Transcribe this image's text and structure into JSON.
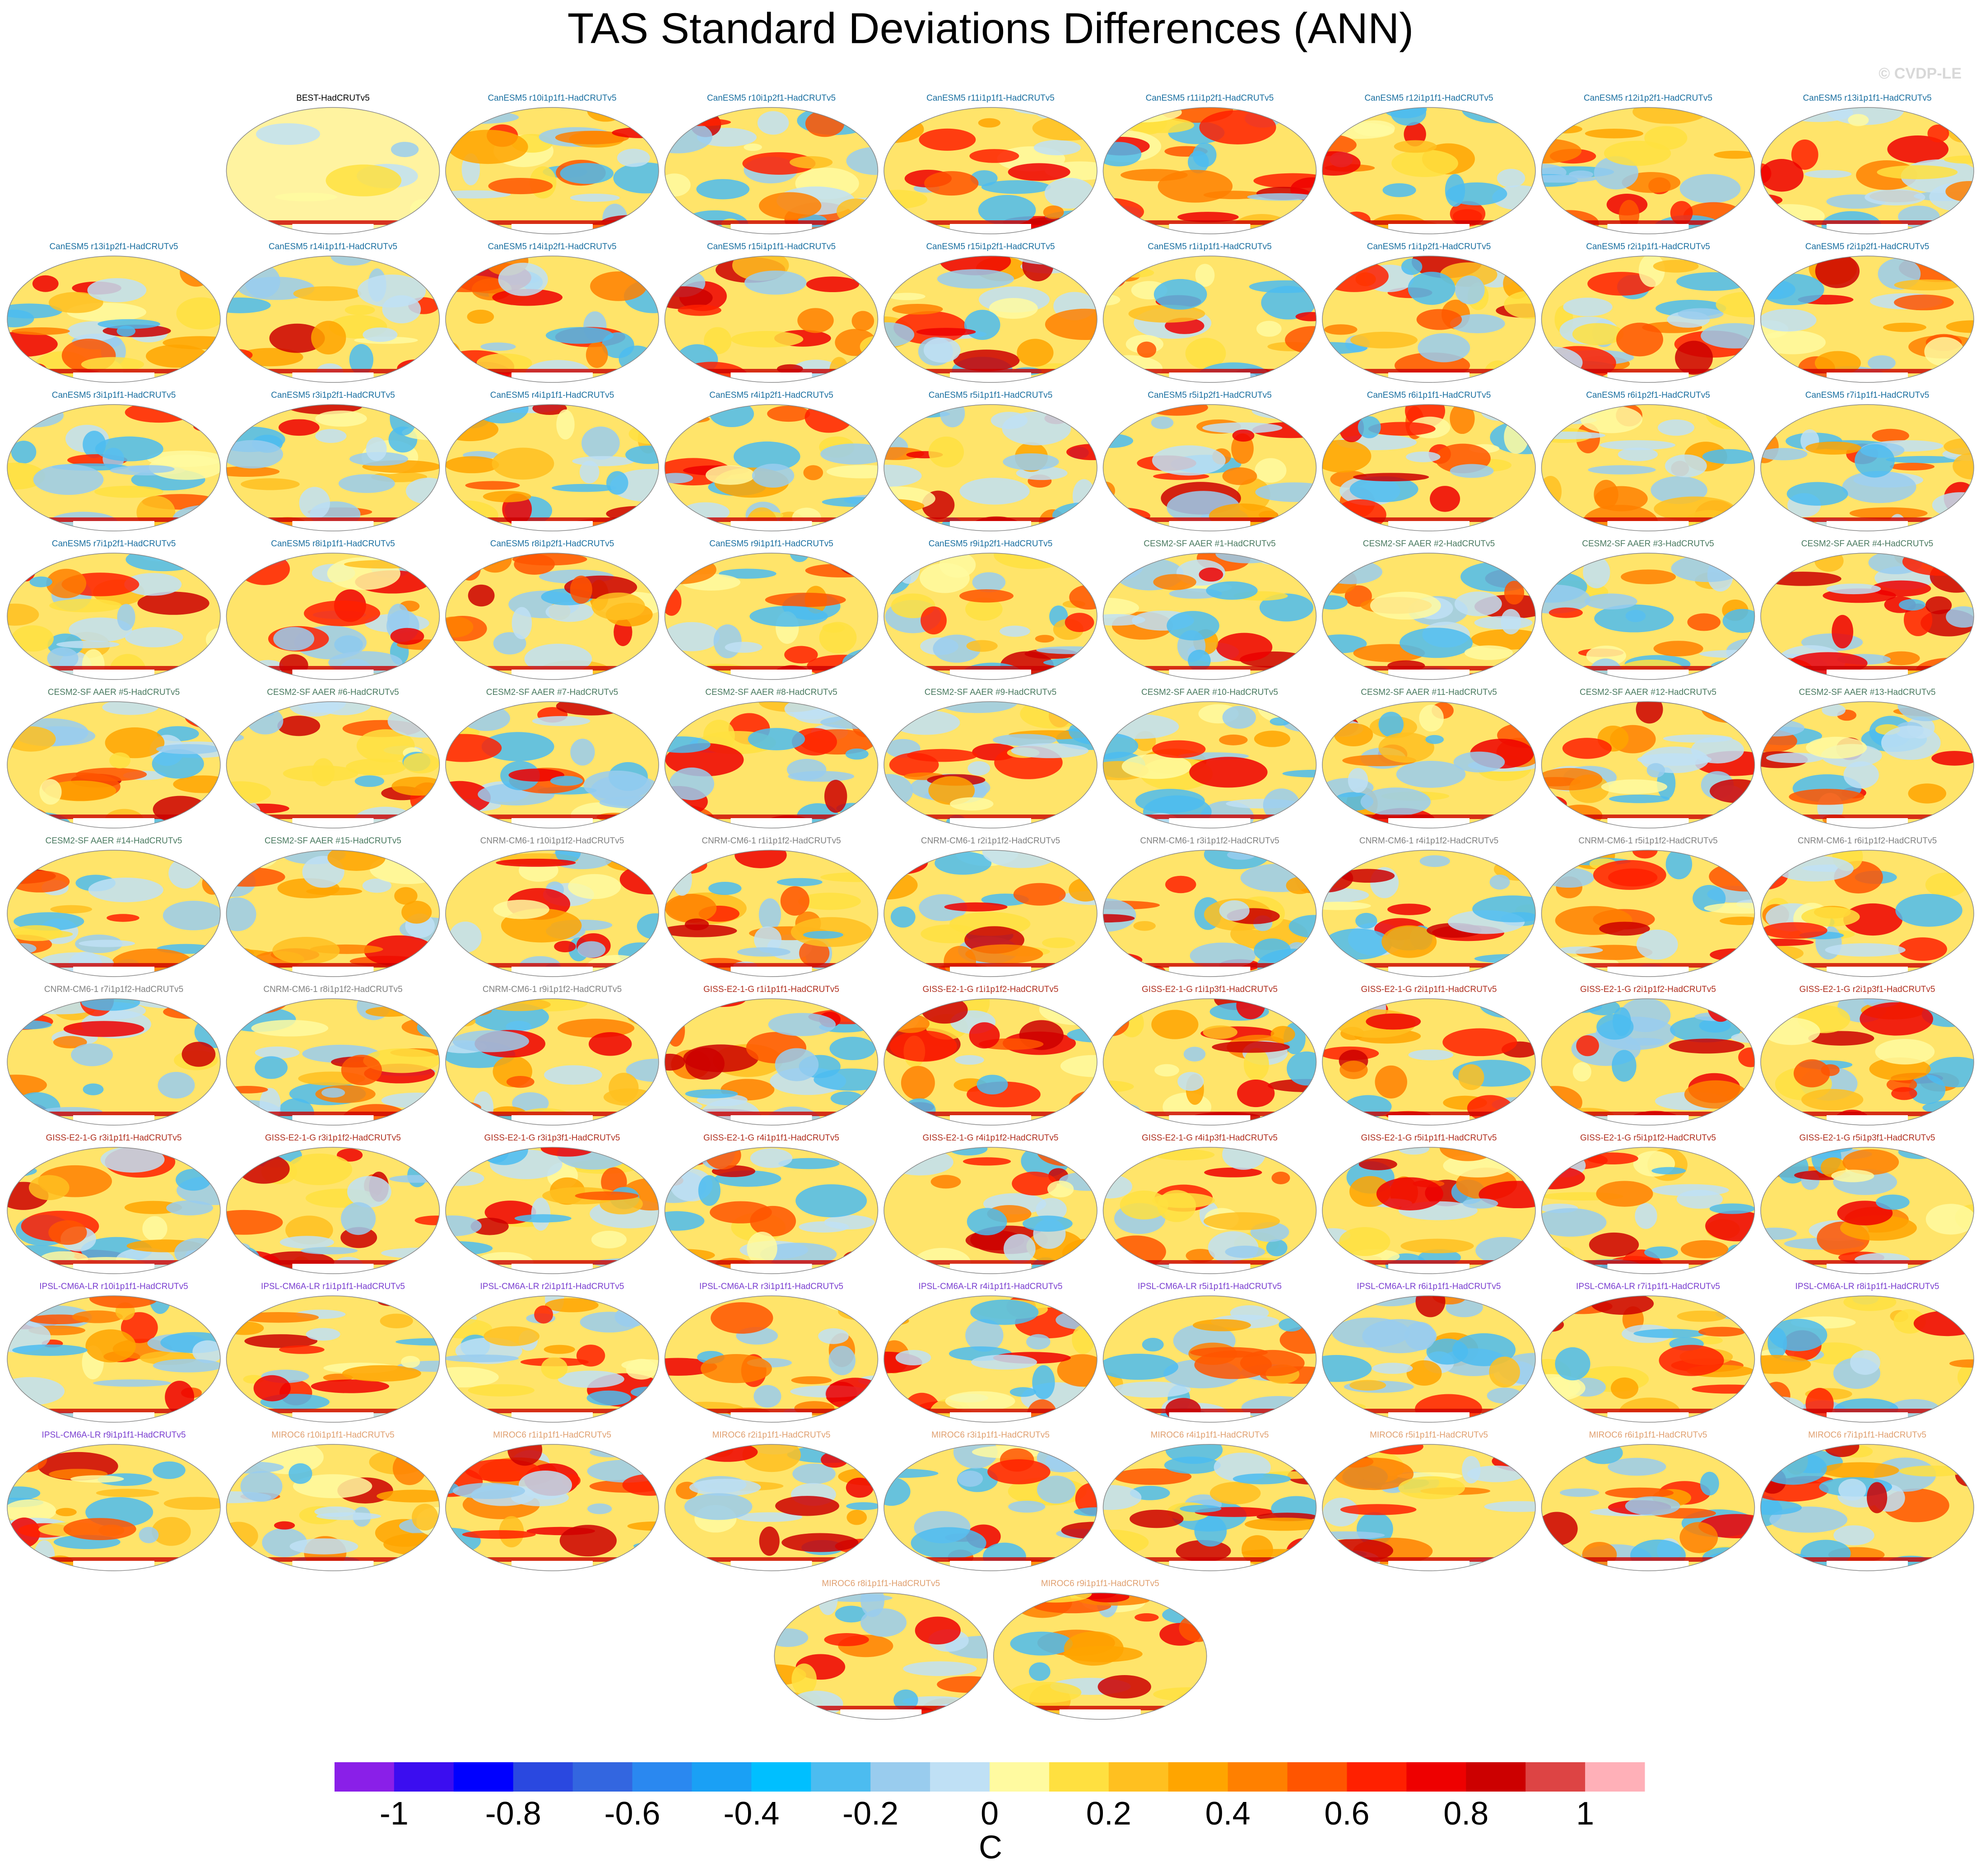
{
  "chart_data": {
    "type": "map",
    "title": "TAS Standard Deviations Differences (ANN)",
    "watermark": "© CVDP-LE",
    "panels": [
      {
        "title": "BEST-HadCRUTv5",
        "color": "#000000"
      },
      {
        "title": "CanESM5 r10i1p1f1-HadCRUTv5",
        "color": "#1a6fa0"
      },
      {
        "title": "CanESM5 r10i1p2f1-HadCRUTv5",
        "color": "#1a6fa0"
      },
      {
        "title": "CanESM5 r11i1p1f1-HadCRUTv5",
        "color": "#1a6fa0"
      },
      {
        "title": "CanESM5 r11i1p2f1-HadCRUTv5",
        "color": "#1a6fa0"
      },
      {
        "title": "CanESM5 r12i1p1f1-HadCRUTv5",
        "color": "#1a6fa0"
      },
      {
        "title": "CanESM5 r12i1p2f1-HadCRUTv5",
        "color": "#1a6fa0"
      },
      {
        "title": "CanESM5 r13i1p1f1-HadCRUTv5",
        "color": "#1a6fa0"
      },
      {
        "title": "CanESM5 r13i1p2f1-HadCRUTv5",
        "color": "#1a6fa0"
      },
      {
        "title": "CanESM5 r14i1p1f1-HadCRUTv5",
        "color": "#1a6fa0"
      },
      {
        "title": "CanESM5 r14i1p2f1-HadCRUTv5",
        "color": "#1a6fa0"
      },
      {
        "title": "CanESM5 r15i1p1f1-HadCRUTv5",
        "color": "#1a6fa0"
      },
      {
        "title": "CanESM5 r15i1p2f1-HadCRUTv5",
        "color": "#1a6fa0"
      },
      {
        "title": "CanESM5 r1i1p1f1-HadCRUTv5",
        "color": "#1a6fa0"
      },
      {
        "title": "CanESM5 r1i1p2f1-HadCRUTv5",
        "color": "#1a6fa0"
      },
      {
        "title": "CanESM5 r2i1p1f1-HadCRUTv5",
        "color": "#1a6fa0"
      },
      {
        "title": "CanESM5 r2i1p2f1-HadCRUTv5",
        "color": "#1a6fa0"
      },
      {
        "title": "CanESM5 r3i1p1f1-HadCRUTv5",
        "color": "#1a6fa0"
      },
      {
        "title": "CanESM5 r3i1p2f1-HadCRUTv5",
        "color": "#1a6fa0"
      },
      {
        "title": "CanESM5 r4i1p1f1-HadCRUTv5",
        "color": "#1a6fa0"
      },
      {
        "title": "CanESM5 r4i1p2f1-HadCRUTv5",
        "color": "#1a6fa0"
      },
      {
        "title": "CanESM5 r5i1p1f1-HadCRUTv5",
        "color": "#1a6fa0"
      },
      {
        "title": "CanESM5 r5i1p2f1-HadCRUTv5",
        "color": "#1a6fa0"
      },
      {
        "title": "CanESM5 r6i1p1f1-HadCRUTv5",
        "color": "#1a6fa0"
      },
      {
        "title": "CanESM5 r6i1p2f1-HadCRUTv5",
        "color": "#1a6fa0"
      },
      {
        "title": "CanESM5 r7i1p1f1-HadCRUTv5",
        "color": "#1a6fa0"
      },
      {
        "title": "CanESM5 r7i1p2f1-HadCRUTv5",
        "color": "#1a6fa0"
      },
      {
        "title": "CanESM5 r8i1p1f1-HadCRUTv5",
        "color": "#1a6fa0"
      },
      {
        "title": "CanESM5 r8i1p2f1-HadCRUTv5",
        "color": "#1a6fa0"
      },
      {
        "title": "CanESM5 r9i1p1f1-HadCRUTv5",
        "color": "#1a6fa0"
      },
      {
        "title": "CanESM5 r9i1p2f1-HadCRUTv5",
        "color": "#1a6fa0"
      },
      {
        "title": "CESM2-SF AAER #1-HadCRUTv5",
        "color": "#4a7a60"
      },
      {
        "title": "CESM2-SF AAER #2-HadCRUTv5",
        "color": "#4a7a60"
      },
      {
        "title": "CESM2-SF AAER #3-HadCRUTv5",
        "color": "#4a7a60"
      },
      {
        "title": "CESM2-SF AAER #4-HadCRUTv5",
        "color": "#4a7a60"
      },
      {
        "title": "CESM2-SF AAER #5-HadCRUTv5",
        "color": "#4a7a60"
      },
      {
        "title": "CESM2-SF AAER #6-HadCRUTv5",
        "color": "#4a7a60"
      },
      {
        "title": "CESM2-SF AAER #7-HadCRUTv5",
        "color": "#4a7a60"
      },
      {
        "title": "CESM2-SF AAER #8-HadCRUTv5",
        "color": "#4a7a60"
      },
      {
        "title": "CESM2-SF AAER #9-HadCRUTv5",
        "color": "#4a7a60"
      },
      {
        "title": "CESM2-SF AAER #10-HadCRUTv5",
        "color": "#4a7a60"
      },
      {
        "title": "CESM2-SF AAER #11-HadCRUTv5",
        "color": "#4a7a60"
      },
      {
        "title": "CESM2-SF AAER #12-HadCRUTv5",
        "color": "#4a7a60"
      },
      {
        "title": "CESM2-SF AAER #13-HadCRUTv5",
        "color": "#4a7a60"
      },
      {
        "title": "CESM2-SF AAER #14-HadCRUTv5",
        "color": "#4a7a60"
      },
      {
        "title": "CESM2-SF AAER #15-HadCRUTv5",
        "color": "#4a7a60"
      },
      {
        "title": "CNRM-CM6-1 r10i1p1f2-HadCRUTv5",
        "color": "#808080"
      },
      {
        "title": "CNRM-CM6-1 r1i1p1f2-HadCRUTv5",
        "color": "#808080"
      },
      {
        "title": "CNRM-CM6-1 r2i1p1f2-HadCRUTv5",
        "color": "#808080"
      },
      {
        "title": "CNRM-CM6-1 r3i1p1f2-HadCRUTv5",
        "color": "#808080"
      },
      {
        "title": "CNRM-CM6-1 r4i1p1f2-HadCRUTv5",
        "color": "#808080"
      },
      {
        "title": "CNRM-CM6-1 r5i1p1f2-HadCRUTv5",
        "color": "#808080"
      },
      {
        "title": "CNRM-CM6-1 r6i1p1f2-HadCRUTv5",
        "color": "#808080"
      },
      {
        "title": "CNRM-CM6-1 r7i1p1f2-HadCRUTv5",
        "color": "#808080"
      },
      {
        "title": "CNRM-CM6-1 r8i1p1f2-HadCRUTv5",
        "color": "#808080"
      },
      {
        "title": "CNRM-CM6-1 r9i1p1f2-HadCRUTv5",
        "color": "#808080"
      },
      {
        "title": "GISS-E2-1-G r1i1p1f1-HadCRUTv5",
        "color": "#b03020"
      },
      {
        "title": "GISS-E2-1-G r1i1p1f2-HadCRUTv5",
        "color": "#b03020"
      },
      {
        "title": "GISS-E2-1-G r1i1p3f1-HadCRUTv5",
        "color": "#b03020"
      },
      {
        "title": "GISS-E2-1-G r2i1p1f1-HadCRUTv5",
        "color": "#b03020"
      },
      {
        "title": "GISS-E2-1-G r2i1p1f2-HadCRUTv5",
        "color": "#b03020"
      },
      {
        "title": "GISS-E2-1-G r2i1p3f1-HadCRUTv5",
        "color": "#b03020"
      },
      {
        "title": "GISS-E2-1-G r3i1p1f1-HadCRUTv5",
        "color": "#b03020"
      },
      {
        "title": "GISS-E2-1-G r3i1p1f2-HadCRUTv5",
        "color": "#b03020"
      },
      {
        "title": "GISS-E2-1-G r3i1p3f1-HadCRUTv5",
        "color": "#b03020"
      },
      {
        "title": "GISS-E2-1-G r4i1p1f1-HadCRUTv5",
        "color": "#b03020"
      },
      {
        "title": "GISS-E2-1-G r4i1p1f2-HadCRUTv5",
        "color": "#b03020"
      },
      {
        "title": "GISS-E2-1-G r4i1p3f1-HadCRUTv5",
        "color": "#b03020"
      },
      {
        "title": "GISS-E2-1-G r5i1p1f1-HadCRUTv5",
        "color": "#b03020"
      },
      {
        "title": "GISS-E2-1-G r5i1p1f2-HadCRUTv5",
        "color": "#b03020"
      },
      {
        "title": "GISS-E2-1-G r5i1p3f1-HadCRUTv5",
        "color": "#b03020"
      },
      {
        "title": "IPSL-CM6A-LR r10i1p1f1-HadCRUTv5",
        "color": "#7a3fd0"
      },
      {
        "title": "IPSL-CM6A-LR r1i1p1f1-HadCRUTv5",
        "color": "#7a3fd0"
      },
      {
        "title": "IPSL-CM6A-LR r2i1p1f1-HadCRUTv5",
        "color": "#7a3fd0"
      },
      {
        "title": "IPSL-CM6A-LR r3i1p1f1-HadCRUTv5",
        "color": "#7a3fd0"
      },
      {
        "title": "IPSL-CM6A-LR r4i1p1f1-HadCRUTv5",
        "color": "#7a3fd0"
      },
      {
        "title": "IPSL-CM6A-LR r5i1p1f1-HadCRUTv5",
        "color": "#7a3fd0"
      },
      {
        "title": "IPSL-CM6A-LR r6i1p1f1-HadCRUTv5",
        "color": "#7a3fd0"
      },
      {
        "title": "IPSL-CM6A-LR r7i1p1f1-HadCRUTv5",
        "color": "#7a3fd0"
      },
      {
        "title": "IPSL-CM6A-LR r8i1p1f1-HadCRUTv5",
        "color": "#7a3fd0"
      },
      {
        "title": "IPSL-CM6A-LR r9i1p1f1-HadCRUTv5",
        "color": "#7a3fd0"
      },
      {
        "title": "MIROC6 r10i1p1f1-HadCRUTv5",
        "color": "#e0a070"
      },
      {
        "title": "MIROC6 r1i1p1f1-HadCRUTv5",
        "color": "#e0a070"
      },
      {
        "title": "MIROC6 r2i1p1f1-HadCRUTv5",
        "color": "#e0a070"
      },
      {
        "title": "MIROC6 r3i1p1f1-HadCRUTv5",
        "color": "#e0a070"
      },
      {
        "title": "MIROC6 r4i1p1f1-HadCRUTv5",
        "color": "#e0a070"
      },
      {
        "title": "MIROC6 r5i1p1f1-HadCRUTv5",
        "color": "#e0a070"
      },
      {
        "title": "MIROC6 r6i1p1f1-HadCRUTv5",
        "color": "#e0a070"
      },
      {
        "title": "MIROC6 r7i1p1f1-HadCRUTv5",
        "color": "#e0a070"
      },
      {
        "title": "MIROC6 r8i1p1f1-HadCRUTv5",
        "color": "#e0a070"
      },
      {
        "title": "MIROC6 r9i1p1f1-HadCRUTv5",
        "color": "#e0a070"
      }
    ],
    "colorbar": {
      "colors": [
        "#8a1fe8",
        "#3b0df0",
        "#0000ff",
        "#2a48e0",
        "#3366e0",
        "#2a88f0",
        "#1aa0f5",
        "#00bfff",
        "#4cbcf0",
        "#99ccee",
        "#bfe0f5",
        "#fffaa0",
        "#ffe040",
        "#ffc020",
        "#ffa500",
        "#ff8000",
        "#ff5500",
        "#ff2000",
        "#ee0000",
        "#cc0000",
        "#dd4444",
        "#ffb0b8"
      ],
      "ticks": [
        -1,
        -0.8,
        -0.6,
        -0.4,
        -0.2,
        0,
        0.2,
        0.4,
        0.6,
        0.8,
        1
      ],
      "label": "C"
    }
  }
}
